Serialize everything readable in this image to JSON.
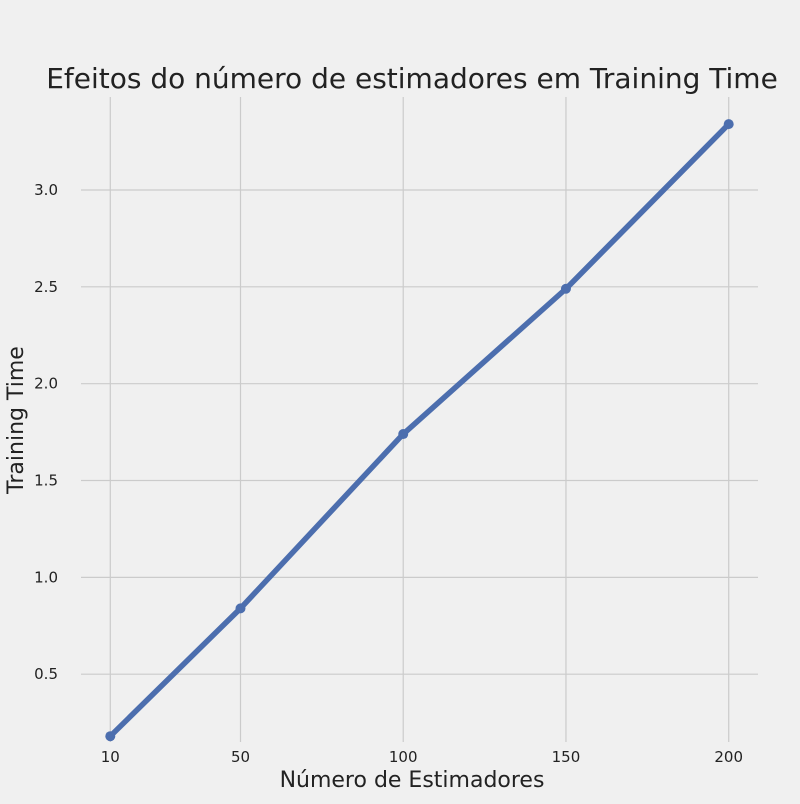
{
  "chart_data": {
    "type": "line",
    "title": "Efeitos do número de estimadores em Training Time",
    "xlabel": "Número de Estimadores",
    "ylabel": "Training Time",
    "x": [
      10,
      50,
      100,
      150,
      200
    ],
    "xticks": [
      "10",
      "50",
      "100",
      "150",
      "200"
    ],
    "yticks": [
      "0.5",
      "1.0",
      "1.5",
      "2.0",
      "2.5",
      "3.0"
    ],
    "ytick_values": [
      0.5,
      1.0,
      1.5,
      2.0,
      2.5,
      3.0
    ],
    "xlim": [
      1,
      209
    ],
    "ylim": [
      0.15,
      3.48
    ],
    "grid": true,
    "series": [
      {
        "values": [
          0.18,
          0.84,
          1.74,
          2.49,
          3.34
        ],
        "color": "#4c6eae",
        "marker": "circle"
      }
    ],
    "colors": {
      "background": "#f0f0f0",
      "grid": "#cbcbcb",
      "text": "#222222"
    }
  }
}
